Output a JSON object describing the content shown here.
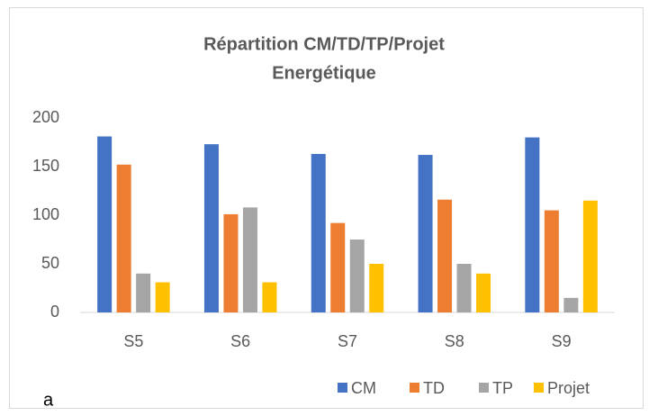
{
  "chart_data": {
    "type": "bar",
    "title": [
      "Répartition CM/TD/TP/Projet",
      "Energétique"
    ],
    "categories": [
      "S5",
      "S6",
      "S7",
      "S8",
      "S9"
    ],
    "series": [
      {
        "name": "CM",
        "color": "#4472c4",
        "values": [
          181,
          173,
          163,
          162,
          180
        ]
      },
      {
        "name": "TD",
        "color": "#ed7d31",
        "values": [
          152,
          101,
          92,
          116,
          105
        ]
      },
      {
        "name": "TP",
        "color": "#a5a5a5",
        "values": [
          40,
          108,
          75,
          50,
          15
        ]
      },
      {
        "name": "Projet",
        "color": "#ffc000",
        "values": [
          31,
          31,
          50,
          40,
          115
        ]
      }
    ],
    "ylim": [
      0,
      200
    ],
    "yticks": [
      0,
      50,
      100,
      150,
      200
    ],
    "grid": false,
    "legend": "bottom",
    "annotation": "a"
  }
}
